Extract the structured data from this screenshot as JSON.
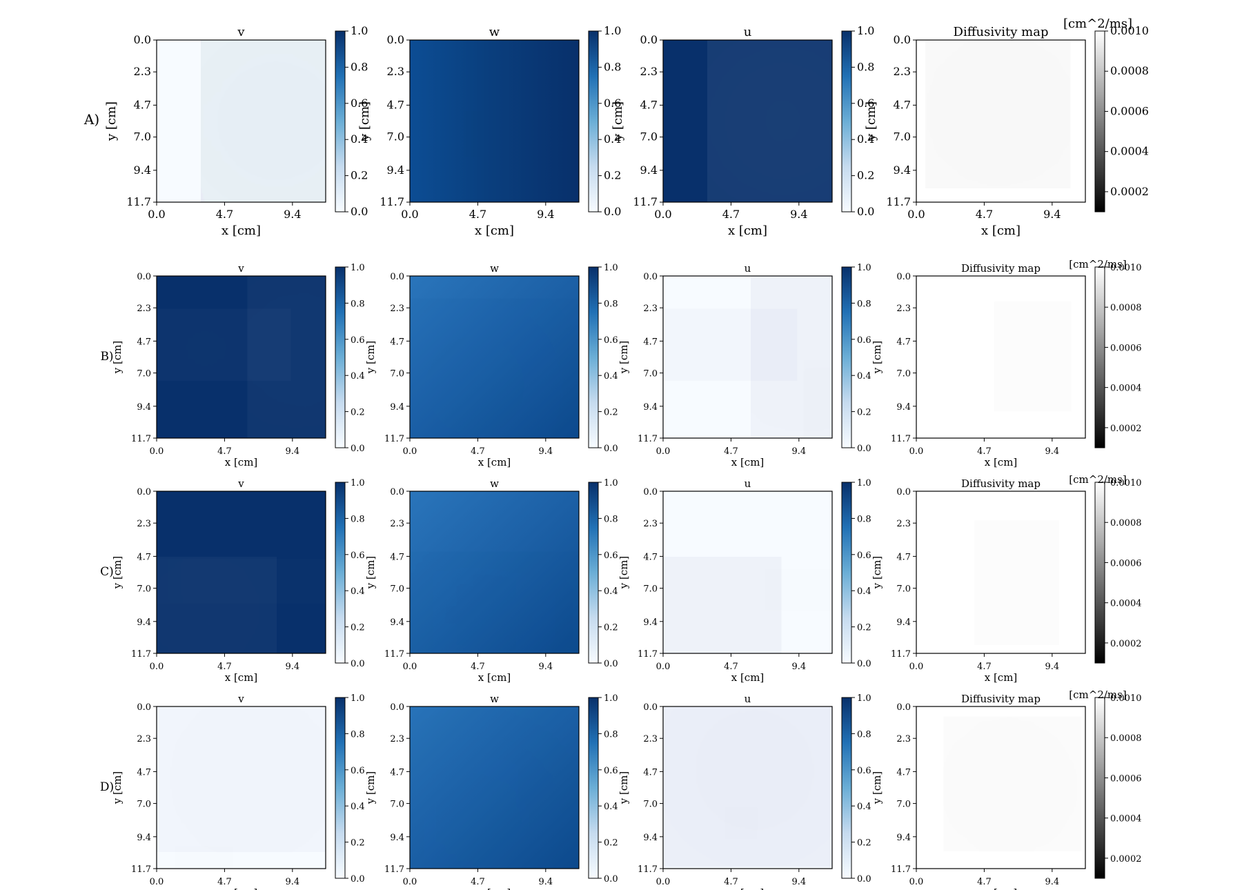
{
  "chart_data": {
    "type": "heatmap",
    "description_rows": [
      "A)",
      "B)",
      "C)",
      "D)"
    ],
    "panel_titles": [
      "v",
      "w",
      "u",
      "Diffusivity map"
    ],
    "xlabel": "x [cm]",
    "ylabel": "y [cm]",
    "x_ticks": [
      "0.0",
      "4.7",
      "9.4"
    ],
    "y_ticks": [
      "0.0",
      "2.3",
      "4.7",
      "7.0",
      "9.4",
      "11.7"
    ],
    "xlim": [
      0,
      11.7
    ],
    "ylim": [
      11.7,
      0
    ],
    "state_colorbar": {
      "cmap": "Blues",
      "range": [
        0,
        1
      ],
      "ticks": [
        "0.0",
        "0.2",
        "0.4",
        "0.6",
        "0.8",
        "1.0"
      ]
    },
    "diffusivity_colorbar": {
      "cmap": "gray",
      "range": [
        0.0001,
        0.001
      ],
      "unit_label": "[cm^2/ms]",
      "ticks": [
        "0.0002",
        "0.0004",
        "0.0006",
        "0.0008",
        "0.0010"
      ]
    },
    "rows": [
      {
        "label": "A)",
        "panels": [
          "v",
          "w",
          "u",
          "Diffusivity map"
        ]
      },
      {
        "label": "B)",
        "panels": [
          "v",
          "w",
          "u",
          "Diffusivity map"
        ]
      },
      {
        "label": "C)",
        "panels": [
          "v",
          "w",
          "u",
          "Diffusivity map"
        ]
      },
      {
        "label": "D)",
        "panels": [
          "v",
          "w",
          "u",
          "Diffusivity map"
        ]
      }
    ]
  },
  "colors": {
    "blue_dark": "#08306b",
    "blue_mid": "#2171b5",
    "blue_light": "#f7fbff",
    "gray_min": "#000000",
    "gray_max": "#ffffff"
  }
}
